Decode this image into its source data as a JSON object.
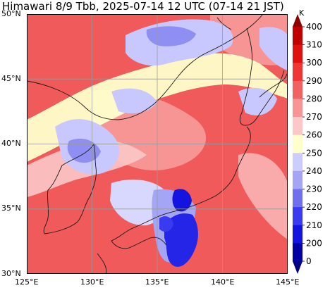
{
  "title": "Himawari 8/9 Tbb, 2025-07-14 12 UTC (07-14 21 JST)",
  "map": {
    "lon_range": [
      125,
      145
    ],
    "lat_range": [
      30,
      50
    ],
    "lon_ticks": [
      "125°E",
      "130°E",
      "135°E",
      "140°E",
      "145°E"
    ],
    "lat_ticks": [
      "50°N",
      "45°N",
      "40°N",
      "35°N",
      "30°N"
    ],
    "gridlines": true
  },
  "colorbar": {
    "unit": "K",
    "labels": [
      "400",
      "310",
      "300",
      "290",
      "280",
      "270",
      "260",
      "250",
      "240",
      "230",
      "220",
      "210",
      "200",
      "0"
    ],
    "colors": [
      "#8b0000",
      "#c00000",
      "#e01010",
      "#f03535",
      "#f06262",
      "#f79494",
      "#fbc7c7",
      "#ffffcc",
      "#ccccff",
      "#a5a5f5",
      "#7070ee",
      "#3a3af0",
      "#1414e0",
      "#0000a5",
      "#000080"
    ]
  },
  "colors": {
    "warm_low": "#f05a5a",
    "warm_mid": "#f79494",
    "yellow": "#ffffcc",
    "cold_light": "#c8c8ff",
    "cold_mid": "#8f8ff3",
    "cold_deep": "#2525e8"
  }
}
